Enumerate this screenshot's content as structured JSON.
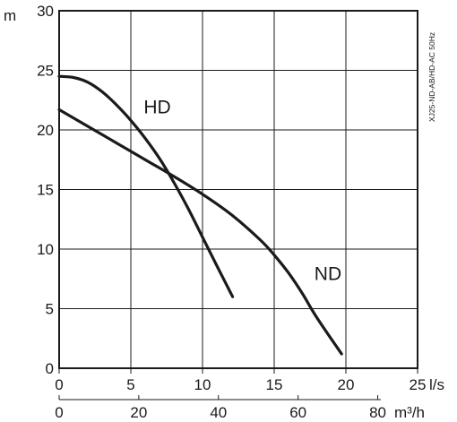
{
  "chart_data": {
    "type": "line",
    "side_note": "XJ25-ND-AB/HD-AC 50Hz",
    "y_axis": {
      "unit": "m",
      "range": [
        0,
        30
      ],
      "ticks": [
        {
          "value": 0,
          "label": "0"
        },
        {
          "value": 5,
          "label": "5"
        },
        {
          "value": 10,
          "label": "10"
        },
        {
          "value": 15,
          "label": "15"
        },
        {
          "value": 20,
          "label": "20"
        },
        {
          "value": 25,
          "label": "25"
        },
        {
          "value": 30,
          "label": "30"
        }
      ]
    },
    "x_axis_primary": {
      "unit": "l/s",
      "range": [
        0,
        25
      ],
      "ticks": [
        {
          "value": 0,
          "label": "0"
        },
        {
          "value": 5,
          "label": "5"
        },
        {
          "value": 10,
          "label": "10"
        },
        {
          "value": 15,
          "label": "15"
        },
        {
          "value": 20,
          "label": "20"
        },
        {
          "value": 25,
          "label": "25"
        }
      ]
    },
    "x_axis_secondary": {
      "unit": "m³/h",
      "range": [
        0,
        90
      ],
      "ticks": [
        {
          "value": 0,
          "label": "0"
        },
        {
          "value": 20,
          "label": "20"
        },
        {
          "value": 40,
          "label": "40"
        },
        {
          "value": 60,
          "label": "60"
        },
        {
          "value": 80,
          "label": "80"
        }
      ]
    },
    "grid": true,
    "series": [
      {
        "name": "HD",
        "x": [
          0,
          1,
          2,
          3,
          4,
          5,
          6,
          7,
          8,
          9,
          10,
          11,
          12.1
        ],
        "y": [
          24.5,
          24.4,
          24.0,
          23.2,
          22.1,
          20.8,
          19.3,
          17.6,
          15.6,
          13.4,
          11.0,
          8.6,
          6.0
        ]
      },
      {
        "name": "ND",
        "x": [
          0,
          2,
          4,
          6,
          8,
          10,
          12,
          14,
          15,
          16,
          17,
          18,
          19.7
        ],
        "y": [
          21.7,
          20.3,
          18.9,
          17.5,
          16.1,
          14.6,
          12.9,
          10.8,
          9.5,
          8.0,
          6.2,
          4.2,
          1.2
        ]
      }
    ]
  }
}
